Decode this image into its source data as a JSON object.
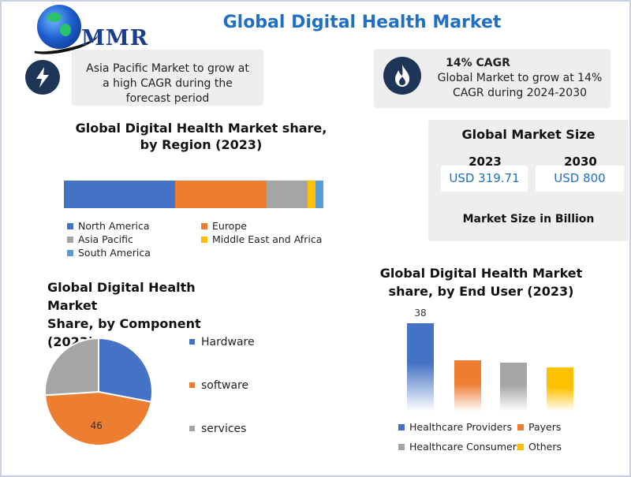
{
  "brand": {
    "logo_text": "MMR"
  },
  "title": "Global Digital Health Market",
  "colors": {
    "blue": "#4472c4",
    "orange": "#ed7d31",
    "gray": "#a5a5a5",
    "yellow": "#ffc000",
    "lightblue": "#5b9bd5",
    "accent": "#1f6fc4",
    "navy": "#1d3557"
  },
  "callouts": {
    "left": {
      "icon": "lightning-bolt-icon",
      "lines": [
        "Asia Pacific Market to grow at",
        "a high CAGR during the",
        "forecast period"
      ]
    },
    "right": {
      "icon": "flame-icon",
      "heading": "14% CAGR",
      "lines": [
        "Global Market to grow at 14%",
        "CAGR during 2024-2030"
      ]
    }
  },
  "market_size": {
    "title": "Global Market Size",
    "years": [
      "2023",
      "2030"
    ],
    "values": [
      "USD 319.71",
      "USD 800"
    ],
    "note": "Market Size in Billion"
  },
  "chart_data": [
    {
      "type": "bar",
      "orientation": "horizontal-stacked",
      "title": "Global Digital Health Market share, by Region (2023)",
      "title_lines": [
        "Global Digital Health Market share,",
        "by Region (2023)"
      ],
      "series": [
        {
          "name": "North America",
          "value": 43,
          "color": "#4472c4"
        },
        {
          "name": "Europe",
          "value": 35,
          "color": "#ed7d31"
        },
        {
          "name": "Asia Pacific",
          "value": 16,
          "color": "#a5a5a5"
        },
        {
          "name": "Middle East and Africa",
          "value": 3,
          "color": "#ffc000"
        },
        {
          "name": "South America",
          "value": 3,
          "color": "#5b9bd5"
        }
      ],
      "legend": "bottom"
    },
    {
      "type": "pie",
      "title": "Global Digital Health Market Share, by Component (2023)",
      "title_lines": [
        "Global Digital Health Market",
        "Share, by Component (2023)"
      ],
      "categories": [
        "Hardware",
        "software",
        "services"
      ],
      "values": [
        28,
        46,
        26
      ],
      "colors": [
        "#4472c4",
        "#ed7d31",
        "#a5a5a5"
      ],
      "data_labels": [
        "",
        "46",
        ""
      ],
      "legend": "right"
    },
    {
      "type": "bar",
      "title": "Global Digital Health Market share, by End User (2023)",
      "title_lines": [
        "Global Digital Health Market",
        "share, by End User (2023)"
      ],
      "categories": [
        "Healthcare Providers",
        "Payers",
        "Healthcare Consumers",
        "Others"
      ],
      "values": [
        38,
        22,
        21,
        19
      ],
      "colors": [
        "#4472c4",
        "#ed7d31",
        "#a5a5a5",
        "#ffc000"
      ],
      "data_labels": [
        "38",
        "",
        "",
        ""
      ],
      "ylim": [
        0,
        40
      ],
      "legend": "bottom"
    }
  ]
}
